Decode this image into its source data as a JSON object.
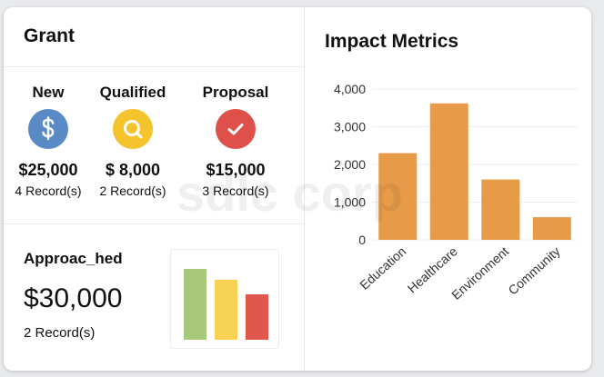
{
  "grant": {
    "title": "Grant",
    "stages": [
      {
        "label": "New",
        "icon": "dollar-icon",
        "color": "#5a8ac6",
        "amount": "$25,000",
        "records": "4 Record(s)"
      },
      {
        "label": "Qualified",
        "icon": "search-icon",
        "color": "#f5c32c",
        "amount": "$ 8,000",
        "records": "2 Record(s)"
      },
      {
        "label": "Proposal",
        "icon": "check-icon",
        "color": "#e0504b",
        "amount": "$15,000",
        "records": "3 Record(s)"
      }
    ],
    "approached": {
      "title": "Approac_hed",
      "amount": "$30,000",
      "records": "2 Record(s)",
      "mini_chart": {
        "colors": [
          "#a8c97a",
          "#f7d154",
          "#e0574e"
        ],
        "relative_values": [
          1.0,
          0.84,
          0.64
        ]
      }
    }
  },
  "metrics": {
    "title": "Impact Metrics"
  },
  "chart_data": {
    "type": "bar",
    "categories": [
      "Education",
      "Healthcare",
      "Environment",
      "Community"
    ],
    "values": [
      2300,
      3620,
      1600,
      600
    ],
    "ylim": [
      0,
      4000
    ],
    "yticks": [
      "0",
      "1,000",
      "2,000",
      "3,000",
      "4,000"
    ],
    "ytick_values": [
      0,
      1000,
      2000,
      3000,
      4000
    ],
    "bar_color": "#e79a47",
    "grid": true
  },
  "watermark": "sdlc corp"
}
